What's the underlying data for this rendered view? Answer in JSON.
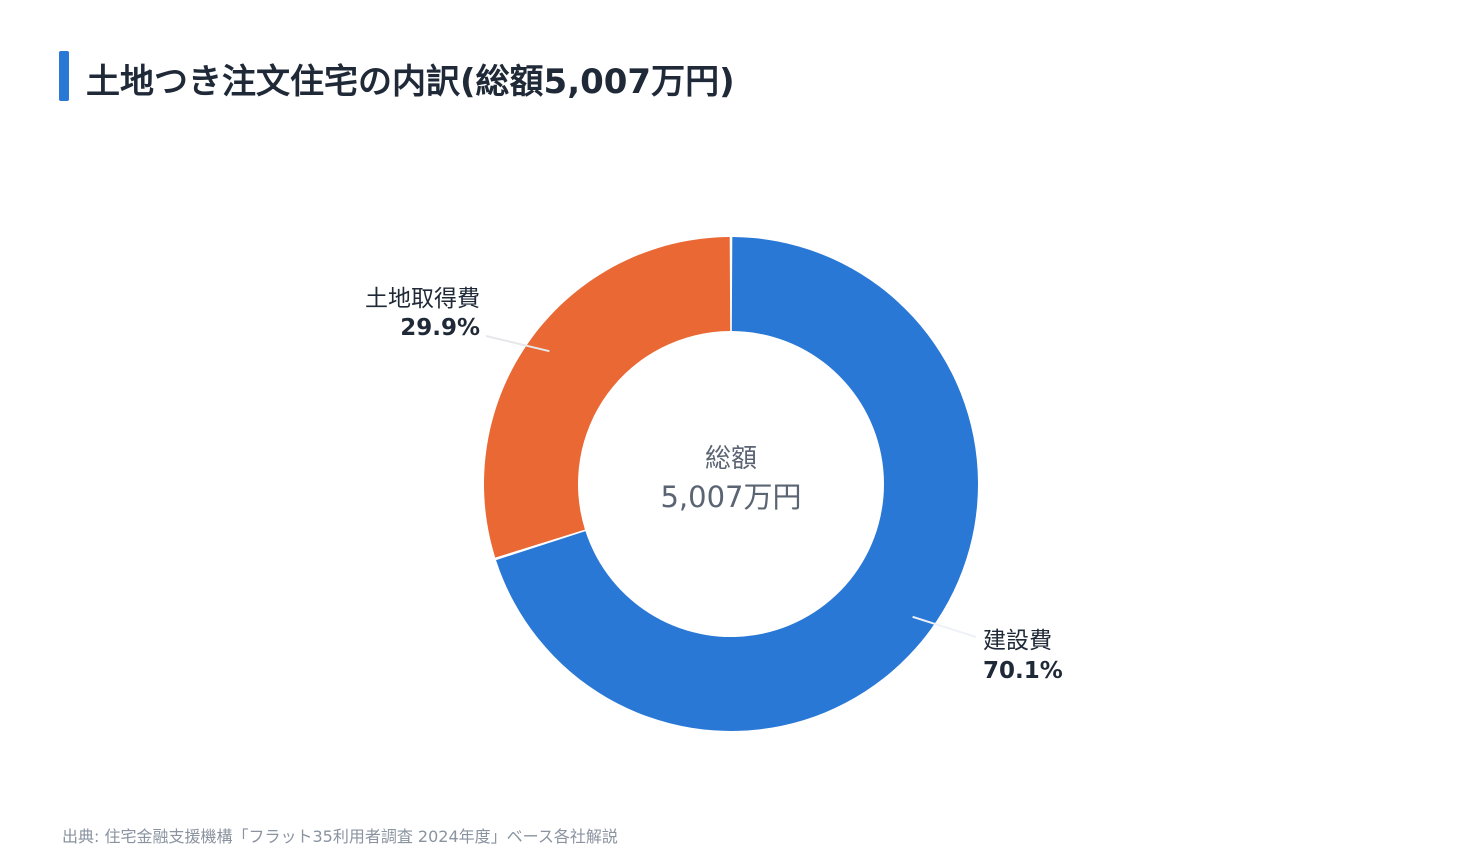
{
  "title": "土地つき注文住宅の内訳(総額5,007万円)",
  "source": "出典: 住宅金融支援機構「フラット35利用者調査 2024年度」ベース各社解説",
  "center_label": {
    "line1": "総額",
    "line2": "5,007万円"
  },
  "colors": {
    "accent": "#2a78d6",
    "construction": "#2a78d6",
    "land": "#e96834",
    "title_text": "#1f2937",
    "center_text": "#5b6472",
    "source_text": "#8a93a0",
    "leader_line": "#e5e7eb"
  },
  "chart_data": {
    "type": "pie",
    "donut": true,
    "title": "土地つき注文住宅の内訳(総額5,007万円)",
    "center_text": [
      "総額",
      "5,007万円"
    ],
    "slices": [
      {
        "label": "建設費",
        "value": 70.1,
        "value_label": "70.1%",
        "color": "#2a78d6"
      },
      {
        "label": "土地取得費",
        "value": 29.9,
        "value_label": "29.9%",
        "color": "#e96834"
      }
    ],
    "start_angle": "12 o'clock",
    "direction": "clockwise",
    "legend": "none (labels outside with leader lines)"
  }
}
